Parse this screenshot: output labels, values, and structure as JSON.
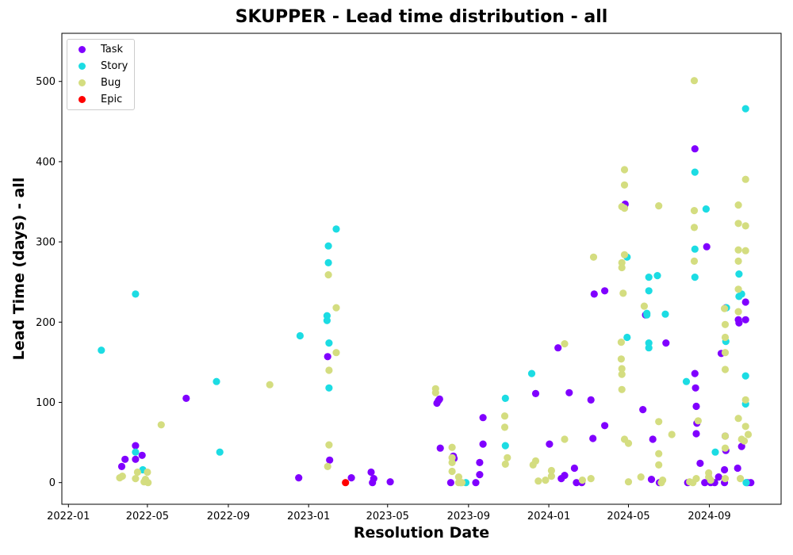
{
  "chart_data": {
    "type": "scatter",
    "title": "SKUPPER - Lead time distribution - all",
    "xlabel": "Resolution Date",
    "ylabel": "Lead Time (days) - all",
    "xlim": [
      "2021-12-22",
      "2024-12-19"
    ],
    "ylim": [
      -27,
      560
    ],
    "x_ticks": [
      "2022-01",
      "2022-05",
      "2022-09",
      "2023-01",
      "2023-05",
      "2023-09",
      "2024-01",
      "2024-05",
      "2024-09"
    ],
    "y_ticks": [
      0,
      100,
      200,
      300,
      400,
      500
    ],
    "grid": false,
    "legend_position": "upper-left",
    "series": [
      {
        "name": "Task",
        "color": "#8000ff",
        "points": [
          [
            "2022-03-23",
            20
          ],
          [
            "2022-03-28",
            29
          ],
          [
            "2022-04-13",
            29
          ],
          [
            "2022-04-13",
            46
          ],
          [
            "2022-04-23",
            34
          ],
          [
            "2022-06-29",
            105
          ],
          [
            "2022-12-17",
            6
          ],
          [
            "2023-01-30",
            157
          ],
          [
            "2023-02-02",
            28
          ],
          [
            "2023-03-07",
            6
          ],
          [
            "2023-04-06",
            13
          ],
          [
            "2023-04-08",
            0
          ],
          [
            "2023-04-10",
            5
          ],
          [
            "2023-05-05",
            1
          ],
          [
            "2023-07-15",
            99
          ],
          [
            "2023-07-17",
            102
          ],
          [
            "2023-07-19",
            104
          ],
          [
            "2023-07-20",
            43
          ],
          [
            "2023-08-05",
            0
          ],
          [
            "2023-08-09",
            33
          ],
          [
            "2023-08-10",
            30
          ],
          [
            "2023-09-12",
            0
          ],
          [
            "2023-09-18",
            10
          ],
          [
            "2023-09-18",
            25
          ],
          [
            "2023-09-23",
            48
          ],
          [
            "2023-09-23",
            81
          ],
          [
            "2023-12-12",
            111
          ],
          [
            "2024-01-02",
            48
          ],
          [
            "2024-01-15",
            168
          ],
          [
            "2024-01-20",
            5
          ],
          [
            "2024-01-25",
            9
          ],
          [
            "2024-02-01",
            112
          ],
          [
            "2024-02-09",
            18
          ],
          [
            "2024-02-12",
            0
          ],
          [
            "2024-02-20",
            0
          ],
          [
            "2024-03-05",
            103
          ],
          [
            "2024-03-08",
            55
          ],
          [
            "2024-03-10",
            235
          ],
          [
            "2024-03-26",
            71
          ],
          [
            "2024-03-26",
            239
          ],
          [
            "2024-04-25",
            345
          ],
          [
            "2024-04-26",
            347
          ],
          [
            "2024-05-23",
            91
          ],
          [
            "2024-05-27",
            209
          ],
          [
            "2024-06-05",
            4
          ],
          [
            "2024-06-07",
            54
          ],
          [
            "2024-06-17",
            0
          ],
          [
            "2024-06-27",
            174
          ],
          [
            "2024-07-30",
            0
          ],
          [
            "2024-08-10",
            416
          ],
          [
            "2024-08-10",
            136
          ],
          [
            "2024-08-11",
            118
          ],
          [
            "2024-08-12",
            95
          ],
          [
            "2024-08-12",
            61
          ],
          [
            "2024-08-13",
            74
          ],
          [
            "2024-08-18",
            24
          ],
          [
            "2024-08-25",
            0
          ],
          [
            "2024-08-28",
            294
          ],
          [
            "2024-09-03",
            0
          ],
          [
            "2024-09-09",
            0
          ],
          [
            "2024-09-15",
            7
          ],
          [
            "2024-09-19",
            161
          ],
          [
            "2024-09-24",
            16
          ],
          [
            "2024-09-24",
            0
          ],
          [
            "2024-09-25",
            58
          ],
          [
            "2024-09-26",
            40
          ],
          [
            "2024-09-26",
            218
          ],
          [
            "2024-10-14",
            18
          ],
          [
            "2024-10-15",
            203
          ],
          [
            "2024-10-16",
            199
          ],
          [
            "2024-10-20",
            45
          ],
          [
            "2024-10-26",
            225
          ],
          [
            "2024-10-26",
            203
          ],
          [
            "2024-10-29",
            0
          ],
          [
            "2024-11-03",
            0
          ]
        ]
      },
      {
        "name": "Story",
        "color": "#1cdce3",
        "points": [
          [
            "2022-02-20",
            165
          ],
          [
            "2022-04-13",
            235
          ],
          [
            "2022-04-13",
            38
          ],
          [
            "2022-04-24",
            16
          ],
          [
            "2022-08-14",
            126
          ],
          [
            "2022-08-19",
            38
          ],
          [
            "2022-12-19",
            183
          ],
          [
            "2023-01-29",
            208
          ],
          [
            "2023-01-29",
            202
          ],
          [
            "2023-01-31",
            295
          ],
          [
            "2023-01-31",
            274
          ],
          [
            "2023-02-01",
            174
          ],
          [
            "2023-02-01",
            118
          ],
          [
            "2023-02-12",
            316
          ],
          [
            "2023-08-20",
            0
          ],
          [
            "2023-08-28",
            0
          ],
          [
            "2023-10-27",
            105
          ],
          [
            "2023-10-27",
            46
          ],
          [
            "2023-12-06",
            136
          ],
          [
            "2024-04-29",
            281
          ],
          [
            "2024-04-29",
            181
          ],
          [
            "2024-05-29",
            209
          ],
          [
            "2024-05-29",
            211
          ],
          [
            "2024-06-01",
            256
          ],
          [
            "2024-06-01",
            239
          ],
          [
            "2024-06-01",
            174
          ],
          [
            "2024-06-01",
            168
          ],
          [
            "2024-06-14",
            258
          ],
          [
            "2024-06-26",
            210
          ],
          [
            "2024-07-28",
            126
          ],
          [
            "2024-08-10",
            387
          ],
          [
            "2024-08-10",
            291
          ],
          [
            "2024-08-10",
            256
          ],
          [
            "2024-08-27",
            341
          ],
          [
            "2024-09-10",
            38
          ],
          [
            "2024-09-26",
            176
          ],
          [
            "2024-09-27",
            218
          ],
          [
            "2024-10-16",
            260
          ],
          [
            "2024-10-16",
            232
          ],
          [
            "2024-10-20",
            235
          ],
          [
            "2024-10-26",
            466
          ],
          [
            "2024-10-26",
            133
          ],
          [
            "2024-10-26",
            98
          ],
          [
            "2024-10-27",
            0
          ],
          [
            "2024-10-27",
            0
          ]
        ]
      },
      {
        "name": "Bug",
        "color": "#d4dd80",
        "points": [
          [
            "2022-03-20",
            6
          ],
          [
            "2022-03-24",
            8
          ],
          [
            "2022-04-13",
            5
          ],
          [
            "2022-04-16",
            13
          ],
          [
            "2022-04-26",
            1
          ],
          [
            "2022-04-28",
            4
          ],
          [
            "2022-05-01",
            13
          ],
          [
            "2022-05-02",
            0
          ],
          [
            "2022-05-22",
            72
          ],
          [
            "2022-11-03",
            122
          ],
          [
            "2023-01-30",
            20
          ],
          [
            "2023-01-31",
            259
          ],
          [
            "2023-02-01",
            47
          ],
          [
            "2023-02-01",
            140
          ],
          [
            "2023-02-12",
            218
          ],
          [
            "2023-02-12",
            162
          ],
          [
            "2023-07-13",
            117
          ],
          [
            "2023-07-13",
            112
          ],
          [
            "2023-08-07",
            44
          ],
          [
            "2023-08-07",
            14
          ],
          [
            "2023-08-07",
            31
          ],
          [
            "2023-08-07",
            25
          ],
          [
            "2023-08-17",
            7
          ],
          [
            "2023-08-17",
            0
          ],
          [
            "2023-08-22",
            0
          ],
          [
            "2023-10-26",
            83
          ],
          [
            "2023-10-26",
            69
          ],
          [
            "2023-10-27",
            23
          ],
          [
            "2023-10-30",
            31
          ],
          [
            "2023-12-08",
            22
          ],
          [
            "2023-12-12",
            27
          ],
          [
            "2023-12-16",
            2
          ],
          [
            "2023-12-27",
            3
          ],
          [
            "2024-01-05",
            15
          ],
          [
            "2024-01-05",
            8
          ],
          [
            "2024-01-25",
            173
          ],
          [
            "2024-01-25",
            54
          ],
          [
            "2024-02-21",
            3
          ],
          [
            "2024-03-05",
            5
          ],
          [
            "2024-03-09",
            281
          ],
          [
            "2024-04-20",
            175
          ],
          [
            "2024-04-20",
            154
          ],
          [
            "2024-04-21",
            344
          ],
          [
            "2024-04-21",
            274
          ],
          [
            "2024-04-21",
            268
          ],
          [
            "2024-04-21",
            142
          ],
          [
            "2024-04-21",
            135
          ],
          [
            "2024-04-21",
            116
          ],
          [
            "2024-04-23",
            236
          ],
          [
            "2024-04-25",
            390
          ],
          [
            "2024-04-25",
            371
          ],
          [
            "2024-04-25",
            342
          ],
          [
            "2024-04-25",
            284
          ],
          [
            "2024-04-25",
            54
          ],
          [
            "2024-05-01",
            49
          ],
          [
            "2024-05-01",
            1
          ],
          [
            "2024-05-20",
            7
          ],
          [
            "2024-05-25",
            220
          ],
          [
            "2024-06-16",
            345
          ],
          [
            "2024-06-16",
            76
          ],
          [
            "2024-06-16",
            36
          ],
          [
            "2024-06-16",
            22
          ],
          [
            "2024-06-20",
            0
          ],
          [
            "2024-06-22",
            3
          ],
          [
            "2024-07-06",
            60
          ],
          [
            "2024-08-02",
            1
          ],
          [
            "2024-08-07",
            0
          ],
          [
            "2024-08-09",
            501
          ],
          [
            "2024-08-09",
            339
          ],
          [
            "2024-08-09",
            318
          ],
          [
            "2024-08-09",
            276
          ],
          [
            "2024-08-12",
            5
          ],
          [
            "2024-08-15",
            77
          ],
          [
            "2024-08-31",
            12
          ],
          [
            "2024-08-31",
            7
          ],
          [
            "2024-09-03",
            3
          ],
          [
            "2024-09-24",
            217
          ],
          [
            "2024-09-25",
            197
          ],
          [
            "2024-09-25",
            181
          ],
          [
            "2024-09-25",
            162
          ],
          [
            "2024-09-25",
            141
          ],
          [
            "2024-09-25",
            58
          ],
          [
            "2024-09-25",
            43
          ],
          [
            "2024-09-25",
            5
          ],
          [
            "2024-10-15",
            346
          ],
          [
            "2024-10-15",
            323
          ],
          [
            "2024-10-15",
            290
          ],
          [
            "2024-10-15",
            276
          ],
          [
            "2024-10-15",
            241
          ],
          [
            "2024-10-15",
            213
          ],
          [
            "2024-10-15",
            80
          ],
          [
            "2024-10-18",
            5
          ],
          [
            "2024-10-20",
            54
          ],
          [
            "2024-10-24",
            52
          ],
          [
            "2024-10-26",
            378
          ],
          [
            "2024-10-26",
            320
          ],
          [
            "2024-10-26",
            289
          ],
          [
            "2024-10-26",
            103
          ],
          [
            "2024-10-26",
            70
          ],
          [
            "2024-10-30",
            60
          ]
        ]
      },
      {
        "name": "Epic",
        "color": "#ff0000",
        "points": [
          [
            "2023-02-26",
            0
          ]
        ]
      }
    ]
  }
}
